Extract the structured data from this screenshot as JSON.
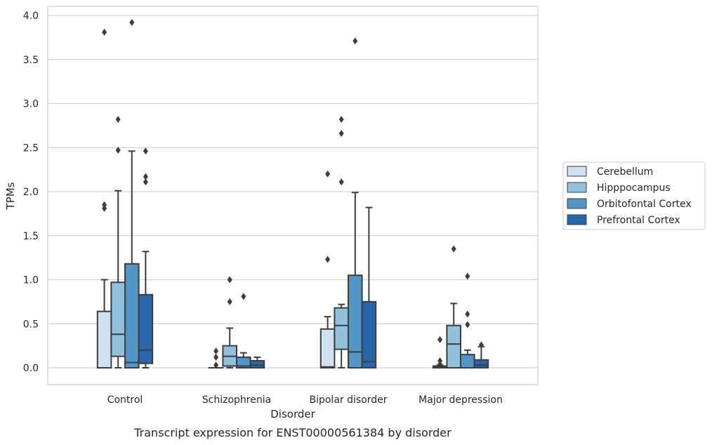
{
  "chart_data": {
    "type": "box",
    "caption": "Transcript expression for ENST00000561384 by disorder",
    "xlabel": "Disorder",
    "ylabel": "TPMs",
    "ylim": [
      -0.19,
      4.1
    ],
    "yticks": [
      0.0,
      0.5,
      1.0,
      1.5,
      2.0,
      2.5,
      3.0,
      3.5,
      4.0
    ],
    "ytick_labels": [
      "0.0",
      "0.5",
      "1.0",
      "1.5",
      "2.0",
      "2.5",
      "3.0",
      "3.5",
      "4.0"
    ],
    "grid": "horizontal",
    "legend_position": "right",
    "categories": [
      "Control",
      "Schizophrenia",
      "Bipolar disorder",
      "Major depression"
    ],
    "series": [
      {
        "name": "Cerebellum",
        "color": "#d0e1f1",
        "boxes": [
          {
            "q1": 0.0,
            "median": 0.0,
            "q3": 0.64,
            "whisker_low": 0.0,
            "whisker_high": 1.0,
            "outliers": [
              1.81,
              1.85,
              3.81
            ]
          },
          {
            "q1": 0.0,
            "median": 0.0,
            "q3": 0.0,
            "whisker_low": 0.0,
            "whisker_high": 0.0,
            "outliers": [
              0.03,
              0.12,
              0.19
            ]
          },
          {
            "q1": 0.0,
            "median": 0.01,
            "q3": 0.44,
            "whisker_low": 0.0,
            "whisker_high": 0.58,
            "outliers": [
              1.23,
              2.2
            ]
          },
          {
            "q1": 0.0,
            "median": 0.01,
            "q3": 0.02,
            "whisker_low": 0.0,
            "whisker_high": 0.03,
            "outliers": [
              0.04,
              0.08,
              0.32
            ]
          }
        ]
      },
      {
        "name": "Hipppocampus",
        "color": "#92c1dd",
        "boxes": [
          {
            "q1": 0.13,
            "median": 0.38,
            "q3": 0.97,
            "whisker_low": 0.0,
            "whisker_high": 2.01,
            "outliers": [
              2.47,
              2.82
            ]
          },
          {
            "q1": 0.02,
            "median": 0.13,
            "q3": 0.25,
            "whisker_low": 0.0,
            "whisker_high": 0.45,
            "outliers": [
              0.75,
              1.0
            ]
          },
          {
            "q1": 0.21,
            "median": 0.48,
            "q3": 0.68,
            "whisker_low": 0.0,
            "whisker_high": 0.72,
            "outliers": [
              2.11,
              2.66,
              2.82
            ]
          },
          {
            "q1": 0.0,
            "median": 0.27,
            "q3": 0.48,
            "whisker_low": 0.0,
            "whisker_high": 0.73,
            "outliers": [
              1.35
            ]
          }
        ]
      },
      {
        "name": "Orbitofontal Cortex",
        "color": "#5296c8",
        "boxes": [
          {
            "q1": 0.0,
            "median": 0.06,
            "q3": 1.18,
            "whisker_low": 0.0,
            "whisker_high": 2.46,
            "outliers": [
              3.92
            ]
          },
          {
            "q1": 0.0,
            "median": 0.02,
            "q3": 0.12,
            "whisker_low": 0.0,
            "whisker_high": 0.17,
            "outliers": [
              0.81
            ]
          },
          {
            "q1": 0.0,
            "median": 0.18,
            "q3": 1.05,
            "whisker_low": 0.0,
            "whisker_high": 1.99,
            "outliers": [
              3.71
            ]
          },
          {
            "q1": 0.0,
            "median": 0.0,
            "q3": 0.15,
            "whisker_low": 0.0,
            "whisker_high": 0.2,
            "outliers": [
              0.49,
              0.61,
              1.04
            ]
          }
        ]
      },
      {
        "name": "Prefrontal Cortex",
        "color": "#2766aa",
        "boxes": [
          {
            "q1": 0.05,
            "median": 0.2,
            "q3": 0.83,
            "whisker_low": 0.0,
            "whisker_high": 1.32,
            "outliers": [
              2.11,
              2.17,
              2.46
            ]
          },
          {
            "q1": 0.0,
            "median": 0.03,
            "q3": 0.08,
            "whisker_low": 0.0,
            "whisker_high": 0.12,
            "outliers": []
          },
          {
            "q1": 0.0,
            "median": 0.07,
            "q3": 0.75,
            "whisker_low": 0.0,
            "whisker_high": 1.82,
            "outliers": []
          },
          {
            "q1": 0.0,
            "median": 0.03,
            "q3": 0.09,
            "whisker_low": 0.0,
            "whisker_high": 0.24,
            "outliers": [
              0.26
            ]
          }
        ]
      }
    ]
  }
}
